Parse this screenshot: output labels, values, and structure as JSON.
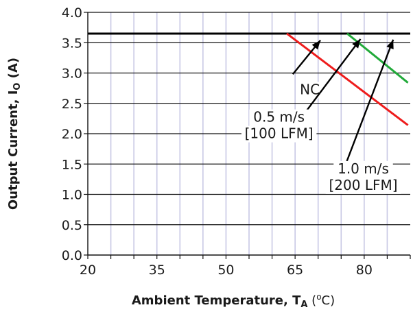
{
  "chart_data": {
    "type": "line",
    "xlabel": {
      "main": "Ambient Temperature,  T",
      "sub": "A",
      "suffix": " (",
      "sup": "o",
      "unit": "C)"
    },
    "ylabel": {
      "main": "Output Current,  I",
      "sub": "O",
      "unit": " (A)"
    },
    "x_ticks": [
      {
        "value": 20,
        "label": "20"
      },
      {
        "value": 35,
        "label": "35"
      },
      {
        "value": 50,
        "label": "50"
      },
      {
        "value": 65,
        "label": "65"
      },
      {
        "value": 80,
        "label": "80"
      }
    ],
    "y_ticks": [
      "0.0",
      "0.5",
      "1.0",
      "1.5",
      "2.0",
      "2.5",
      "3.0",
      "3.5",
      "4.0"
    ],
    "xlim": [
      20,
      90
    ],
    "ylim": [
      0,
      4
    ],
    "x_minor_step": 5,
    "y_step": 0.5,
    "grid": true,
    "series": [
      {
        "name": "",
        "color": "#000000",
        "x": [
          20,
          90
        ],
        "y": [
          3.65,
          3.65
        ]
      },
      {
        "name": "",
        "color": "#ee1c1c",
        "x": [
          63.2,
          89.5
        ],
        "y": [
          3.65,
          2.14
        ]
      },
      {
        "name": "",
        "color": "#22aa3a",
        "x": [
          76.3,
          89.5
        ],
        "y": [
          3.65,
          2.84
        ]
      }
    ],
    "annotations": [
      {
        "lines": [
          "NC"
        ],
        "text_at": [
          68.2,
          2.73
        ],
        "arrow_from": [
          64.5,
          2.98
        ],
        "arrow_to": [
          70.5,
          3.54
        ]
      },
      {
        "lines": [
          "0.5 m/s",
          "[100 LFM]"
        ],
        "text_at": [
          61.5,
          2.14
        ],
        "arrow_from": [
          66.5,
          2.28
        ],
        "arrow_to": [
          79.2,
          3.56
        ]
      },
      {
        "lines": [
          "1.0 m/s",
          "[200 LFM]"
        ],
        "text_at": [
          79.8,
          1.29
        ],
        "arrow_from": [
          75.7,
          1.44
        ],
        "arrow_to": [
          86.3,
          3.55
        ]
      }
    ],
    "colors": {
      "grid_vertical": "#c8c8e4",
      "grid_horizontal": "#111111",
      "axis": "#111111",
      "nc_line": "#000000",
      "line_0_5": "#ee1c1c",
      "line_1_0": "#22aa3a"
    }
  }
}
